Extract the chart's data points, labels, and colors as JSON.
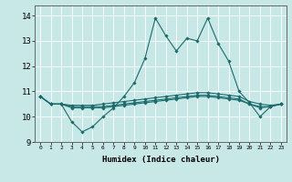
{
  "xlabel": "Humidex (Indice chaleur)",
  "xlim": [
    -0.5,
    23.5
  ],
  "ylim": [
    9,
    14.4
  ],
  "yticks": [
    9,
    10,
    11,
    12,
    13,
    14
  ],
  "xticks": [
    0,
    1,
    2,
    3,
    4,
    5,
    6,
    7,
    8,
    9,
    10,
    11,
    12,
    13,
    14,
    15,
    16,
    17,
    18,
    19,
    20,
    21,
    22,
    23
  ],
  "bg_color": "#c8e8e8",
  "line_color": "#1a6b6b",
  "grid_color": "#ffffff",
  "lines": [
    {
      "x": [
        0,
        1,
        2,
        3,
        4,
        5,
        6,
        7,
        8,
        9,
        10,
        11,
        12,
        13,
        14,
        15,
        16,
        17,
        18,
        19,
        20,
        21,
        22,
        23
      ],
      "y": [
        10.8,
        10.5,
        10.5,
        9.8,
        9.4,
        9.6,
        10.0,
        10.35,
        10.8,
        11.35,
        12.3,
        13.9,
        13.2,
        12.6,
        13.1,
        13.0,
        13.9,
        12.9,
        12.2,
        11.0,
        10.55,
        10.0,
        10.4,
        10.5
      ]
    },
    {
      "x": [
        0,
        1,
        2,
        3,
        4,
        5,
        6,
        7,
        8,
        9,
        10,
        11,
        12,
        13,
        14,
        15,
        16,
        17,
        18,
        19,
        20,
        21,
        22,
        23
      ],
      "y": [
        10.8,
        10.5,
        10.5,
        10.45,
        10.45,
        10.45,
        10.5,
        10.55,
        10.6,
        10.65,
        10.7,
        10.75,
        10.8,
        10.85,
        10.9,
        10.95,
        10.95,
        10.9,
        10.85,
        10.8,
        10.6,
        10.5,
        10.45,
        10.5
      ]
    },
    {
      "x": [
        0,
        1,
        2,
        3,
        4,
        5,
        6,
        7,
        8,
        9,
        10,
        11,
        12,
        13,
        14,
        15,
        16,
        17,
        18,
        19,
        20,
        21,
        22,
        23
      ],
      "y": [
        10.8,
        10.5,
        10.5,
        10.4,
        10.4,
        10.4,
        10.4,
        10.45,
        10.5,
        10.55,
        10.6,
        10.65,
        10.7,
        10.75,
        10.8,
        10.85,
        10.85,
        10.8,
        10.75,
        10.7,
        10.5,
        10.4,
        10.4,
        10.5
      ]
    },
    {
      "x": [
        0,
        1,
        2,
        3,
        4,
        5,
        6,
        7,
        8,
        9,
        10,
        11,
        12,
        13,
        14,
        15,
        16,
        17,
        18,
        19,
        20,
        21,
        22,
        23
      ],
      "y": [
        10.8,
        10.5,
        10.5,
        10.35,
        10.35,
        10.35,
        10.35,
        10.4,
        10.45,
        10.5,
        10.55,
        10.6,
        10.65,
        10.7,
        10.75,
        10.8,
        10.8,
        10.75,
        10.7,
        10.65,
        10.5,
        10.35,
        10.4,
        10.5
      ]
    }
  ]
}
